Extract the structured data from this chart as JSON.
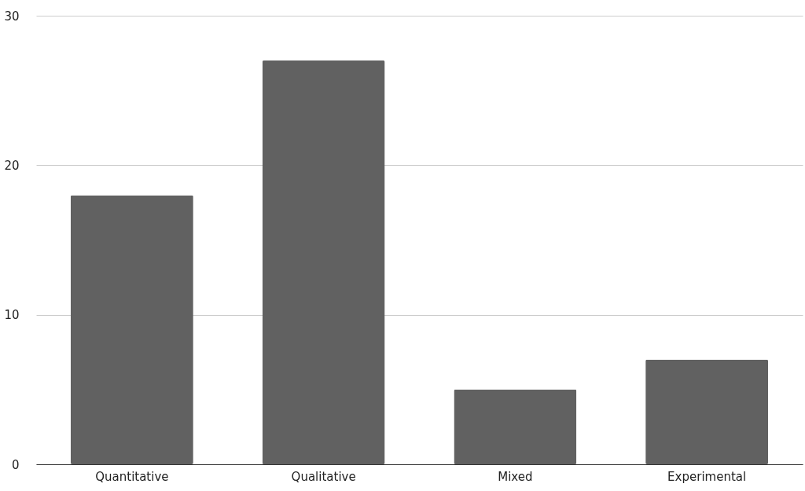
{
  "chart_data": {
    "type": "bar",
    "categories": [
      "Quantitative",
      "Qualitative",
      "Mixed",
      "Experimental"
    ],
    "values": [
      18,
      27,
      5,
      7
    ],
    "color": "#616161",
    "ylim": [
      0,
      30
    ],
    "yticks": [
      0,
      10,
      20,
      30
    ],
    "grid": "y"
  }
}
